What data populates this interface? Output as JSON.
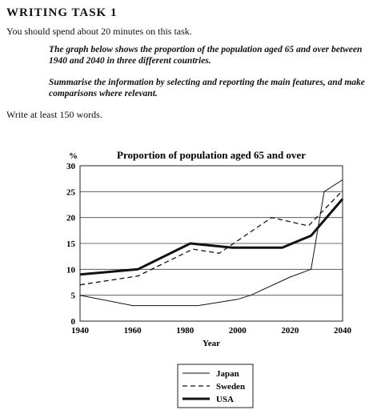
{
  "task": {
    "heading": "WRITING TASK 1",
    "time_note": "You should spend about 20 minutes on this task.",
    "prompt_1": "The graph below shows the proportion of the population aged 65 and over between 1940 and 2040 in three different countries.",
    "prompt_2": "Summarise the information by selecting and reporting the main features, and make comparisons where relevant.",
    "word_count_note": "Write at least 150 words."
  },
  "chart_data": {
    "type": "line",
    "title": "Proportion of population aged 65 and over",
    "xlabel": "Year",
    "ylabel": "%",
    "xlim": [
      1940,
      2040
    ],
    "ylim": [
      0,
      30
    ],
    "x_ticks": [
      1940,
      1960,
      1980,
      2000,
      2020,
      2040
    ],
    "y_ticks": [
      0,
      5,
      10,
      15,
      20,
      25,
      30
    ],
    "grid": "horizontal",
    "legend_position": "bottom-center",
    "series": [
      {
        "name": "Japan",
        "style": "thin-solid",
        "points": [
          [
            1940,
            5
          ],
          [
            1960,
            3
          ],
          [
            1985,
            3
          ],
          [
            2000,
            4.2
          ],
          [
            2005,
            5
          ],
          [
            2020,
            8.5
          ],
          [
            2028,
            10
          ],
          [
            2033,
            25
          ],
          [
            2040,
            27.3
          ]
        ]
      },
      {
        "name": "Sweden",
        "style": "dashed",
        "points": [
          [
            1940,
            7
          ],
          [
            1962,
            8.7
          ],
          [
            1983,
            13.9
          ],
          [
            1993,
            13.1
          ],
          [
            2013,
            20
          ],
          [
            2027,
            18.4
          ],
          [
            2040,
            25.2
          ]
        ]
      },
      {
        "name": "USA",
        "style": "thick-solid",
        "points": [
          [
            1940,
            9
          ],
          [
            1962,
            10
          ],
          [
            1982,
            15
          ],
          [
            1998,
            14.2
          ],
          [
            2017,
            14.2
          ],
          [
            2028,
            16.5
          ],
          [
            2040,
            23.6
          ]
        ]
      }
    ]
  }
}
